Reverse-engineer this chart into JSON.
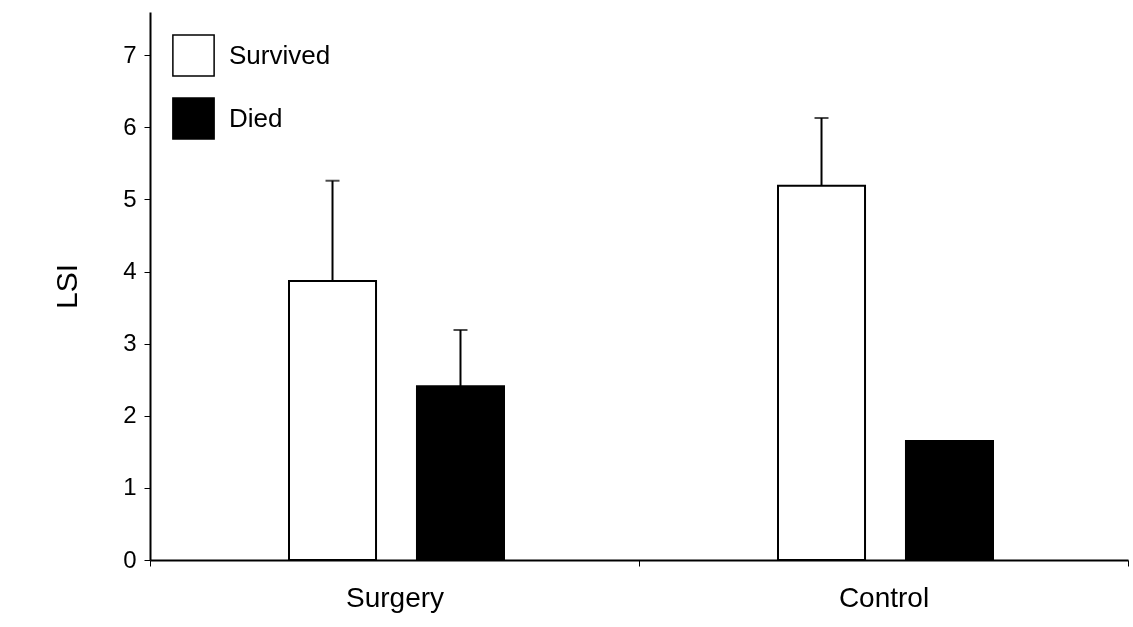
{
  "chart_data": {
    "type": "bar",
    "ylabel": "LSI",
    "categories": [
      "Surgery",
      "Control"
    ],
    "series": [
      {
        "name": "Survived",
        "color": "#ffffff",
        "values": [
          3.87,
          5.19
        ],
        "errors": [
          [
            3.87,
            5.26
          ],
          [
            5.19,
            6.13
          ]
        ]
      },
      {
        "name": "Died",
        "color": "#000000",
        "values": [
          2.41,
          1.65
        ],
        "errors": [
          [
            2.41,
            3.19
          ],
          null
        ]
      }
    ],
    "ylim": [
      0,
      7.6
    ],
    "yticks": [
      0,
      1,
      2,
      3,
      4,
      5,
      6,
      7
    ],
    "grid": false,
    "legend": "top left"
  }
}
